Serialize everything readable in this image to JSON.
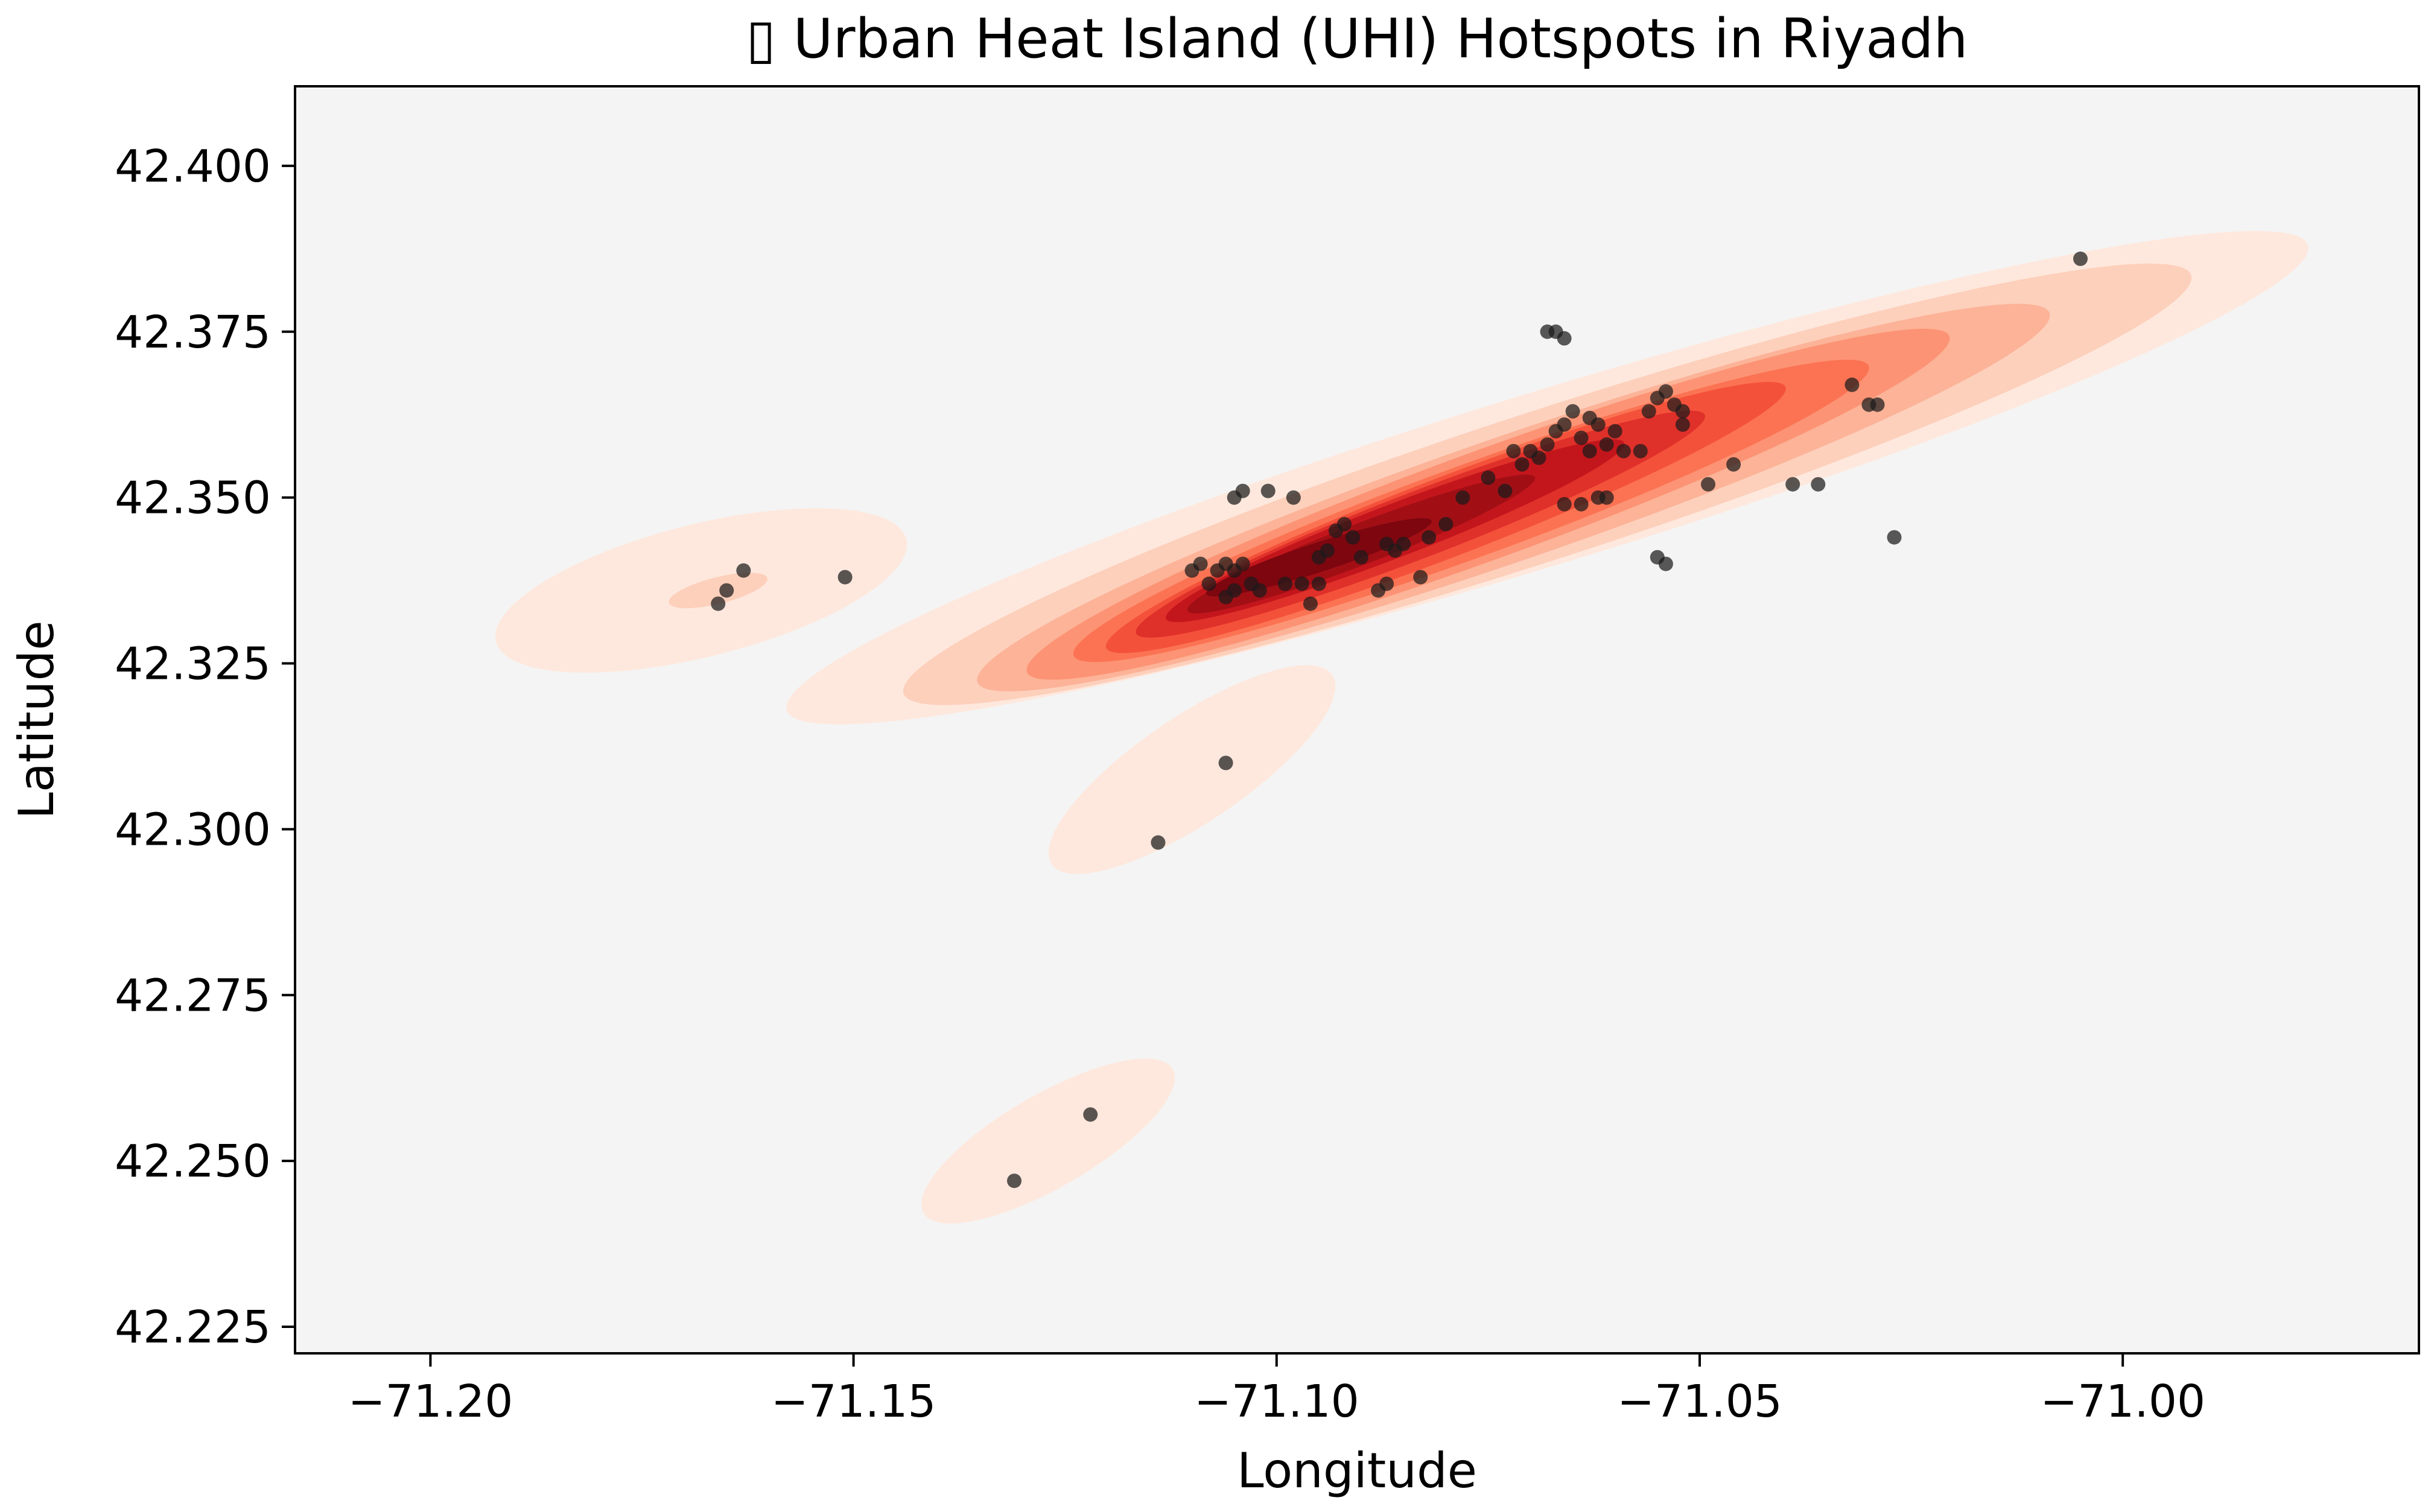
{
  "chart_data": {
    "type": "scatter",
    "title": "▯ Urban Heat Island (UHI) Hotspots in Riyadh",
    "xlabel": "Longitude",
    "ylabel": "Latitude",
    "xlim": [
      -71.216,
      -70.965
    ],
    "ylim": [
      42.221,
      42.412
    ],
    "x_ticks": [
      -71.2,
      -71.15,
      -71.1,
      -71.05,
      -71.0
    ],
    "x_tick_labels": [
      "−71.20",
      "−71.15",
      "−71.10",
      "−71.05",
      "−71.00"
    ],
    "y_ticks": [
      42.225,
      42.25,
      42.275,
      42.3,
      42.325,
      42.35,
      42.375,
      42.4
    ],
    "y_tick_labels": [
      "42.225",
      "42.250",
      "42.275",
      "42.300",
      "42.325",
      "42.350",
      "42.375",
      "42.400"
    ],
    "grid": false,
    "background_color": "#f4f4f4",
    "point_color": "#1a1a1a",
    "density_colormap": [
      "#fee8dd",
      "#fdd0bc",
      "#fcb398",
      "#fc9374",
      "#fb7353",
      "#f4513b",
      "#e0302a",
      "#c3161c",
      "#a10f15",
      "#7d060f"
    ],
    "density_levels": [
      [
        {
          "cx": -71.068,
          "cy": 42.353,
          "rx": 0.094,
          "ry": 0.013,
          "rot": 17
        },
        {
          "cx": -71.168,
          "cy": 42.336,
          "rx": 0.025,
          "ry": 0.01,
          "rot": 14
        },
        {
          "cx": -71.11,
          "cy": 42.309,
          "rx": 0.02,
          "ry": 0.008,
          "rot": 34
        },
        {
          "cx": -71.127,
          "cy": 42.253,
          "rx": 0.017,
          "ry": 0.007,
          "rot": 30
        },
        {
          "cx": -71.015,
          "cy": 42.375,
          "rx": 0.022,
          "ry": 0.008,
          "rot": 20
        }
      ],
      [
        {
          "cx": -71.068,
          "cy": 42.352,
          "rx": 0.08,
          "ry": 0.0112,
          "rot": 18
        },
        {
          "cx": -71.166,
          "cy": 42.336,
          "rx": 0.006,
          "ry": 0.002,
          "rot": 14
        }
      ],
      [
        {
          "cx": -71.072,
          "cy": 42.35,
          "rx": 0.067,
          "ry": 0.0094,
          "rot": 19
        }
      ],
      [
        {
          "cx": -71.075,
          "cy": 42.349,
          "rx": 0.058,
          "ry": 0.0082,
          "rot": 20
        }
      ],
      [
        {
          "cx": -71.077,
          "cy": 42.348,
          "rx": 0.05,
          "ry": 0.007,
          "rot": 20
        }
      ],
      [
        {
          "cx": -71.08,
          "cy": 42.347,
          "rx": 0.043,
          "ry": 0.006,
          "rot": 21
        }
      ],
      [
        {
          "cx": -71.083,
          "cy": 42.346,
          "rx": 0.036,
          "ry": 0.005,
          "rot": 21
        }
      ],
      [
        {
          "cx": -71.086,
          "cy": 42.345,
          "rx": 0.029,
          "ry": 0.004,
          "rot": 21
        }
      ],
      [
        {
          "cx": -71.09,
          "cy": 42.343,
          "rx": 0.022,
          "ry": 0.0031,
          "rot": 21
        }
      ],
      [
        {
          "cx": -71.095,
          "cy": 42.341,
          "rx": 0.014,
          "ry": 0.0022,
          "rot": 18
        }
      ]
    ],
    "points": [
      {
        "x": -71.166,
        "y": 42.334
      },
      {
        "x": -71.165,
        "y": 42.336
      },
      {
        "x": -71.163,
        "y": 42.339
      },
      {
        "x": -71.151,
        "y": 42.338
      },
      {
        "x": -71.106,
        "y": 42.31
      },
      {
        "x": -71.114,
        "y": 42.298
      },
      {
        "x": -71.122,
        "y": 42.257
      },
      {
        "x": -71.131,
        "y": 42.247
      },
      {
        "x": -71.005,
        "y": 42.386
      },
      {
        "x": -71.068,
        "y": 42.375
      },
      {
        "x": -71.067,
        "y": 42.375
      },
      {
        "x": -71.066,
        "y": 42.374
      },
      {
        "x": -71.032,
        "y": 42.367
      },
      {
        "x": -71.03,
        "y": 42.364
      },
      {
        "x": -71.029,
        "y": 42.364
      },
      {
        "x": -71.027,
        "y": 42.344
      },
      {
        "x": -71.046,
        "y": 42.355
      },
      {
        "x": -71.049,
        "y": 42.352
      },
      {
        "x": -71.039,
        "y": 42.352
      },
      {
        "x": -71.036,
        "y": 42.352
      },
      {
        "x": -71.055,
        "y": 42.341
      },
      {
        "x": -71.054,
        "y": 42.34
      },
      {
        "x": -71.055,
        "y": 42.365
      },
      {
        "x": -71.054,
        "y": 42.366
      },
      {
        "x": -71.053,
        "y": 42.364
      },
      {
        "x": -71.052,
        "y": 42.363
      },
      {
        "x": -71.052,
        "y": 42.361
      },
      {
        "x": -71.056,
        "y": 42.363
      },
      {
        "x": -71.057,
        "y": 42.357
      },
      {
        "x": -71.059,
        "y": 42.357
      },
      {
        "x": -71.06,
        "y": 42.36
      },
      {
        "x": -71.061,
        "y": 42.358
      },
      {
        "x": -71.062,
        "y": 42.361
      },
      {
        "x": -71.063,
        "y": 42.362
      },
      {
        "x": -71.063,
        "y": 42.357
      },
      {
        "x": -71.064,
        "y": 42.359
      },
      {
        "x": -71.065,
        "y": 42.363
      },
      {
        "x": -71.066,
        "y": 42.361
      },
      {
        "x": -71.067,
        "y": 42.36
      },
      {
        "x": -71.068,
        "y": 42.358
      },
      {
        "x": -71.069,
        "y": 42.356
      },
      {
        "x": -71.07,
        "y": 42.357
      },
      {
        "x": -71.061,
        "y": 42.35
      },
      {
        "x": -71.062,
        "y": 42.35
      },
      {
        "x": -71.064,
        "y": 42.349
      },
      {
        "x": -71.066,
        "y": 42.349
      },
      {
        "x": -71.071,
        "y": 42.355
      },
      {
        "x": -71.072,
        "y": 42.357
      },
      {
        "x": -71.073,
        "y": 42.351
      },
      {
        "x": -71.075,
        "y": 42.353
      },
      {
        "x": -71.078,
        "y": 42.35
      },
      {
        "x": -71.08,
        "y": 42.346
      },
      {
        "x": -71.082,
        "y": 42.344
      },
      {
        "x": -71.083,
        "y": 42.338
      },
      {
        "x": -71.085,
        "y": 42.343
      },
      {
        "x": -71.086,
        "y": 42.342
      },
      {
        "x": -71.087,
        "y": 42.343
      },
      {
        "x": -71.087,
        "y": 42.337
      },
      {
        "x": -71.088,
        "y": 42.336
      },
      {
        "x": -71.09,
        "y": 42.341
      },
      {
        "x": -71.091,
        "y": 42.344
      },
      {
        "x": -71.092,
        "y": 42.346
      },
      {
        "x": -71.093,
        "y": 42.345
      },
      {
        "x": -71.094,
        "y": 42.342
      },
      {
        "x": -71.095,
        "y": 42.341
      },
      {
        "x": -71.095,
        "y": 42.337
      },
      {
        "x": -71.096,
        "y": 42.334
      },
      {
        "x": -71.097,
        "y": 42.337
      },
      {
        "x": -71.098,
        "y": 42.35
      },
      {
        "x": -71.099,
        "y": 42.337
      },
      {
        "x": -71.101,
        "y": 42.351
      },
      {
        "x": -71.102,
        "y": 42.336
      },
      {
        "x": -71.103,
        "y": 42.337
      },
      {
        "x": -71.104,
        "y": 42.351
      },
      {
        "x": -71.105,
        "y": 42.35
      },
      {
        "x": -71.105,
        "y": 42.336
      },
      {
        "x": -71.106,
        "y": 42.335
      },
      {
        "x": -71.104,
        "y": 42.34
      },
      {
        "x": -71.105,
        "y": 42.339
      },
      {
        "x": -71.106,
        "y": 42.34
      },
      {
        "x": -71.107,
        "y": 42.339
      },
      {
        "x": -71.108,
        "y": 42.337
      },
      {
        "x": -71.11,
        "y": 42.339
      },
      {
        "x": -71.109,
        "y": 42.34
      }
    ]
  }
}
